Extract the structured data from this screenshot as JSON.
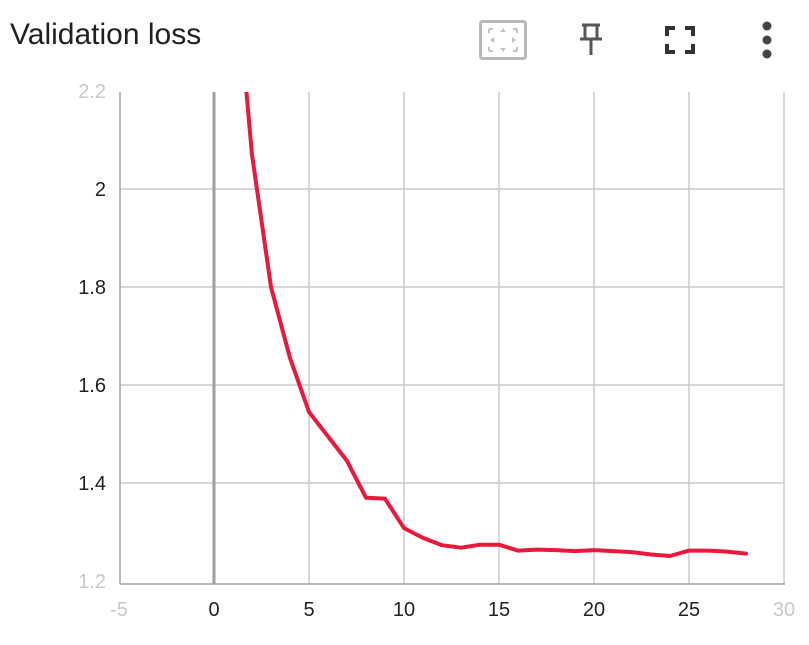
{
  "header": {
    "title": "Validation loss"
  },
  "toolbar": {
    "icons": [
      "fit-domain-icon",
      "pin-icon",
      "fullscreen-icon",
      "more-options-icon"
    ]
  },
  "colors": {
    "series": "#e8193c",
    "grid": "#cccccc",
    "axis": "#a0a0a0",
    "text": "#212121"
  },
  "chart_data": {
    "type": "line",
    "title": "Validation loss",
    "xlabel": "",
    "ylabel": "",
    "xlim": [
      -5,
      30
    ],
    "ylim": [
      1.2,
      2.2
    ],
    "x_ticks": [
      "-5",
      "0",
      "5",
      "10",
      "15",
      "20",
      "25",
      "30"
    ],
    "y_ticks": [
      "1.2",
      "1.4",
      "1.6",
      "1.8",
      "2",
      "2.2"
    ],
    "grid": true,
    "legend": "none",
    "series": [
      {
        "x": [
          1.7,
          2,
          3,
          4,
          5,
          6,
          7,
          8,
          9,
          10,
          11,
          12,
          13,
          14,
          15,
          16,
          17,
          18,
          19,
          20,
          21,
          22,
          23,
          24,
          25,
          26,
          27,
          28
        ],
        "values": [
          2.2,
          2.07,
          1.8,
          1.655,
          1.545,
          1.495,
          1.445,
          1.37,
          1.368,
          1.308,
          1.288,
          1.273,
          1.268,
          1.274,
          1.274,
          1.262,
          1.264,
          1.263,
          1.261,
          1.263,
          1.261,
          1.259,
          1.254,
          1.251,
          1.262,
          1.262,
          1.26,
          1.256
        ]
      }
    ]
  }
}
